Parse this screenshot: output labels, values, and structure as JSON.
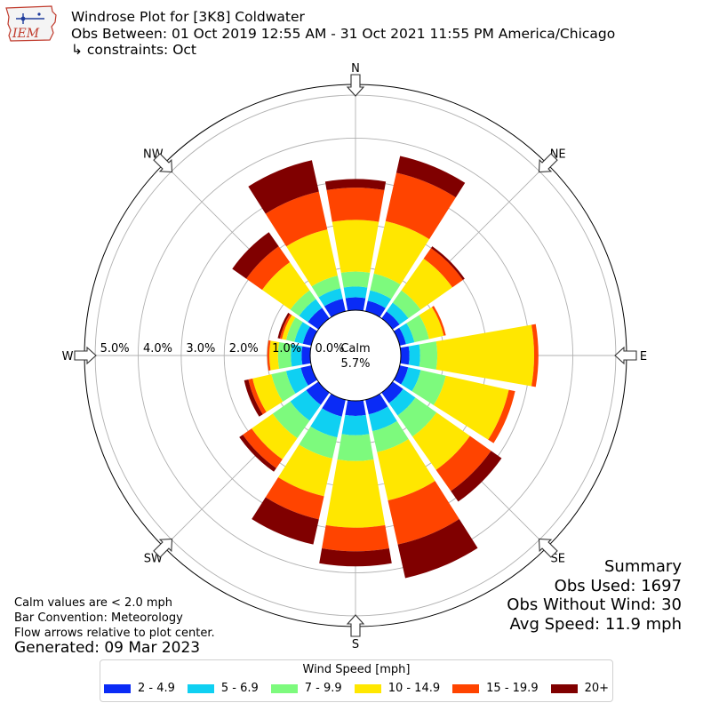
{
  "header": {
    "logo_text": "IEM",
    "title_line1": "Windrose Plot for [3K8] Coldwater",
    "title_line2": "Obs Between: 01 Oct 2019 12:55 AM - 31 Oct 2021 11:55 PM America/Chicago",
    "title_line3": "↳ constraints: Oct"
  },
  "chart_data": {
    "type": "windrose",
    "directions": [
      "N",
      "NNE",
      "NE",
      "ENE",
      "E",
      "ESE",
      "SE",
      "SSE",
      "S",
      "SSW",
      "SW",
      "WSW",
      "W",
      "WNW",
      "NW",
      "NNW"
    ],
    "direction_degrees": [
      0,
      22.5,
      45,
      67.5,
      90,
      112.5,
      135,
      157.5,
      180,
      202.5,
      225,
      247.5,
      270,
      292.5,
      315,
      337.5
    ],
    "cardinal_labels": [
      "N",
      "NE",
      "E",
      "SE",
      "S",
      "SW",
      "W",
      "NW"
    ],
    "radial_ticks": [
      0,
      1,
      2,
      3,
      4,
      5
    ],
    "radial_tick_labels": [
      "0.0%",
      "1.0%",
      "2.0%",
      "3.0%",
      "4.0%",
      "5.0%"
    ],
    "radial_max": 5.25,
    "calm_label": "Calm",
    "calm_value": "5.7%",
    "legend_title": "Wind Speed [mph]",
    "speed_bins": [
      {
        "label": "2 - 4.9",
        "color": "#0a2bf6"
      },
      {
        "label": "5 - 6.9",
        "color": "#0fd0f2"
      },
      {
        "label": "7 - 9.9",
        "color": "#7dfa7d"
      },
      {
        "label": "10 - 14.9",
        "color": "#ffe700"
      },
      {
        "label": "15 - 19.9",
        "color": "#ff4400"
      },
      {
        "label": "20+",
        "color": "#800000"
      }
    ],
    "cumulative_percent": [
      [
        0.3,
        0.55,
        0.9,
        2.1,
        2.85,
        3.05
      ],
      [
        0.25,
        0.5,
        0.9,
        2.15,
        3.3,
        3.7
      ],
      [
        0.2,
        0.45,
        0.8,
        1.7,
        2.0,
        2.05
      ],
      [
        0.15,
        0.35,
        0.7,
        1.05,
        1.1,
        1.1
      ],
      [
        0.2,
        0.45,
        0.85,
        3.1,
        3.2,
        3.2
      ],
      [
        0.2,
        0.5,
        1.1,
        2.6,
        2.75,
        2.75
      ],
      [
        0.3,
        0.65,
        1.25,
        2.2,
        2.8,
        3.1
      ],
      [
        0.35,
        0.75,
        1.25,
        2.4,
        3.45,
        4.25
      ],
      [
        0.35,
        0.8,
        1.4,
        2.95,
        3.5,
        3.85
      ],
      [
        0.4,
        0.9,
        1.4,
        2.3,
        2.85,
        3.45
      ],
      [
        0.35,
        0.8,
        1.3,
        1.9,
        2.15,
        2.25
      ],
      [
        0.25,
        0.6,
        0.95,
        1.4,
        1.5,
        1.6
      ],
      [
        0.2,
        0.45,
        0.75,
        0.95,
        1.0,
        1.0
      ],
      [
        0.2,
        0.4,
        0.6,
        0.7,
        0.75,
        0.8
      ],
      [
        0.3,
        0.55,
        0.8,
        1.6,
        2.05,
        2.45
      ],
      [
        0.3,
        0.55,
        0.85,
        1.95,
        2.85,
        3.6
      ]
    ]
  },
  "notes": {
    "line1": "Calm values are < 2.0 mph",
    "line2": "Bar Convention: Meteorology",
    "line3": "Flow arrows relative to plot center.",
    "generated": "Generated: 09 Mar 2023"
  },
  "summary": {
    "heading": "Summary",
    "obs_used": "Obs Used: 1697",
    "obs_without_wind": "Obs Without Wind: 30",
    "avg_speed": "Avg Speed: 11.9 mph"
  }
}
